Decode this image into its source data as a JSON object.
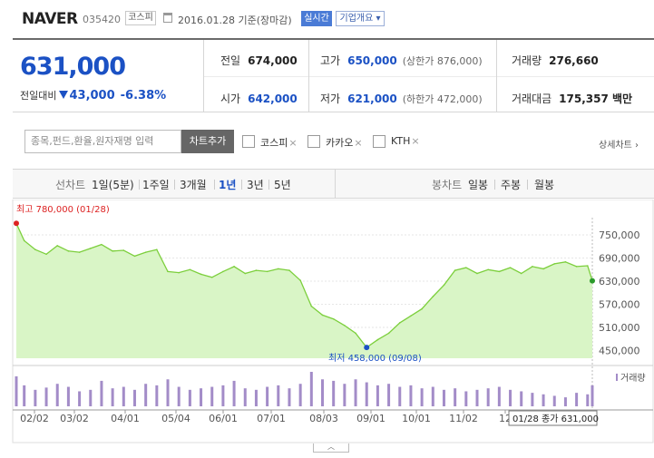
{
  "header": {
    "stock_name": "NAVER",
    "stock_code": "035420",
    "market": "코스피",
    "date_text": "2016.01.28 기준(장마감)",
    "realtime_label": "실시간",
    "company_overview": "기업개요 ▾"
  },
  "price": {
    "current": "631,000",
    "change_label": "전일대비",
    "change_amount": "43,000",
    "change_pct": "-6.38%",
    "prev_close_label": "전일",
    "prev_close": "674,000",
    "open_label": "시가",
    "open": "642,000",
    "high_label": "고가",
    "high": "650,000",
    "upper_limit": "(상한가 876,000)",
    "low_label": "저가",
    "low": "621,000",
    "lower_limit": "(하한가 472,000)",
    "volume_label": "거래량",
    "volume": "276,660",
    "amount_label": "거래대금",
    "amount": "175,357 백만"
  },
  "compare": {
    "search_placeholder": "종목,펀드,환율,원자재명 입력",
    "add_button": "차트추가",
    "items": [
      "코스피",
      "카카오",
      "KTH"
    ],
    "remove_icon": "×",
    "detail_link": "상세차트 ›"
  },
  "tabs": {
    "line_header": "선차트",
    "periods": [
      "1일(5분)",
      "1주일",
      "3개월",
      "1년",
      "3년",
      "5년"
    ],
    "selected_period": "1년",
    "candle_header": "봉차트",
    "candles": [
      "일봉",
      "주봉",
      "월봉"
    ]
  },
  "chart_data": {
    "type": "area",
    "series": [
      {
        "name": "",
        "x": [
          "2015-01-28",
          "2015-02-02",
          "2015-02-09",
          "2015-02-16",
          "2015-02-23",
          "2015-03-02",
          "2015-03-09",
          "2015-03-16",
          "2015-03-23",
          "2015-03-30",
          "2015-04-06",
          "2015-04-13",
          "2015-04-20",
          "2015-04-27",
          "2015-05-04",
          "2015-05-11",
          "2015-05-18",
          "2015-05-25",
          "2015-06-01",
          "2015-06-08",
          "2015-06-15",
          "2015-06-22",
          "2015-06-29",
          "2015-07-06",
          "2015-07-13",
          "2015-07-20",
          "2015-07-27",
          "2015-08-03",
          "2015-08-10",
          "2015-08-17",
          "2015-08-24",
          "2015-08-31",
          "2015-09-07",
          "2015-09-14",
          "2015-09-21",
          "2015-09-28",
          "2015-10-05",
          "2015-10-12",
          "2015-10-19",
          "2015-10-26",
          "2015-11-02",
          "2015-11-09",
          "2015-11-16",
          "2015-11-23",
          "2015-11-30",
          "2015-12-07",
          "2015-12-14",
          "2015-12-21",
          "2015-12-28",
          "2016-01-04",
          "2016-01-11",
          "2016-01-18",
          "2016-01-25",
          "2016-01-28"
        ],
        "values": [
          780000,
          735000,
          712000,
          700000,
          722000,
          708000,
          705000,
          715000,
          725000,
          708000,
          710000,
          695000,
          705000,
          712000,
          655000,
          652000,
          660000,
          648000,
          640000,
          655000,
          668000,
          650000,
          658000,
          655000,
          662000,
          658000,
          632000,
          565000,
          542000,
          532000,
          515000,
          495000,
          458000,
          478000,
          495000,
          522000,
          540000,
          558000,
          590000,
          620000,
          658000,
          665000,
          650000,
          660000,
          655000,
          665000,
          650000,
          668000,
          662000,
          675000,
          680000,
          668000,
          670000,
          631000
        ]
      }
    ],
    "volume": [
      40,
      28,
      22,
      25,
      30,
      26,
      20,
      22,
      34,
      24,
      26,
      22,
      30,
      28,
      36,
      26,
      22,
      24,
      26,
      28,
      34,
      24,
      22,
      26,
      28,
      24,
      30,
      46,
      36,
      34,
      30,
      36,
      32,
      28,
      30,
      26,
      28,
      24,
      26,
      22,
      24,
      20,
      22,
      24,
      26,
      22,
      20,
      18,
      16,
      14,
      12,
      18,
      16,
      28
    ],
    "y_ticks": [
      "750,000",
      "690,000",
      "630,000",
      "570,000",
      "510,000",
      "450,000"
    ],
    "x_ticks": [
      "02/02",
      "03/02",
      "04/01",
      "05/04",
      "06/01",
      "07/01",
      "08/03",
      "09/01",
      "10/01",
      "11/02",
      "12"
    ],
    "ylim": [
      430000,
      790000
    ],
    "max_label": "최고 780,000 (01/28)",
    "min_label": "최저 458,000 (09/08)",
    "last_label": "01/28 종가 631,000",
    "volume_legend": "거래량",
    "fill_color": "#d9f5c6",
    "line_color": "#7ccf3c",
    "grid": true
  }
}
